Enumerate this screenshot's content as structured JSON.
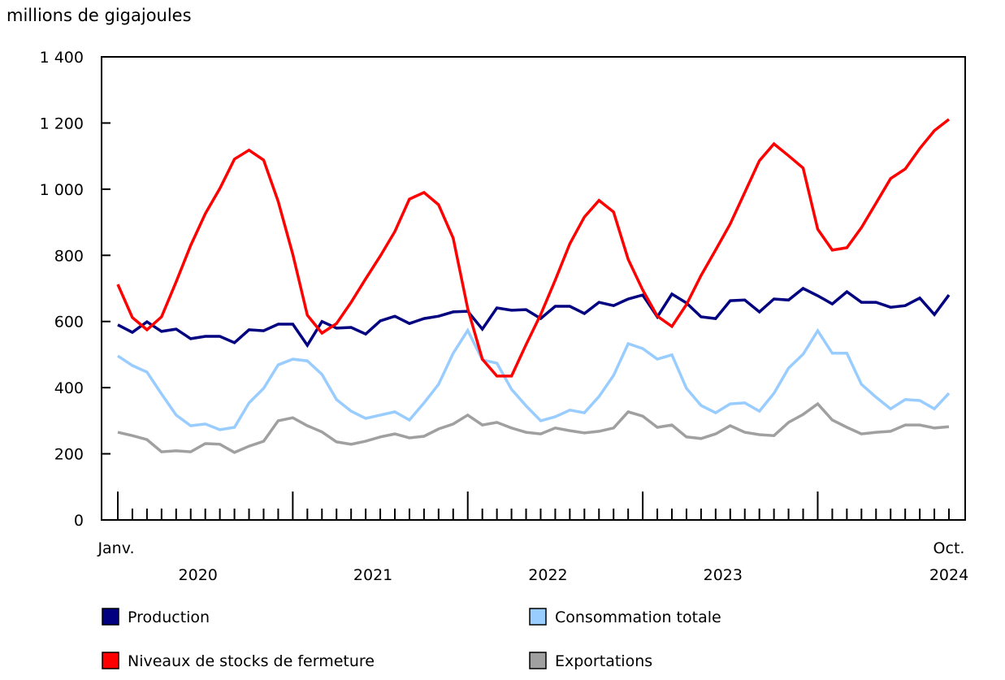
{
  "chart_data": {
    "type": "line",
    "ylabel": "millions de gigajoules",
    "ylim": [
      0,
      1400
    ],
    "yticks": [
      0,
      200,
      400,
      600,
      800,
      1000,
      1200,
      1400
    ],
    "ytick_labels": [
      "0",
      "200",
      "400",
      "600",
      "800",
      "1 000",
      "1 200",
      "1 400"
    ],
    "x_start": "2020-01",
    "x_end": "2024-10",
    "x_month_labels": {
      "first": "Janv.",
      "last": "Oct."
    },
    "x_year_labels": [
      "2020",
      "2021",
      "2022",
      "2023",
      "2024"
    ],
    "grid": false,
    "legend_position": "bottom",
    "series": [
      {
        "name": "Production",
        "color": "#000080",
        "values": [
          590,
          567,
          599,
          570,
          577,
          548,
          555,
          555,
          536,
          575,
          572,
          592,
          592,
          528,
          600,
          580,
          582,
          562,
          602,
          616,
          594,
          609,
          616,
          629,
          631,
          577,
          641,
          634,
          636,
          609,
          646,
          646,
          624,
          658,
          648,
          668,
          680,
          614,
          683,
          656,
          614,
          609,
          663,
          665,
          629,
          668,
          665,
          700,
          678,
          653,
          690,
          658,
          658,
          643,
          648,
          671,
          621,
          680
        ]
      },
      {
        "name": "Consommation totale",
        "color": "#99CCFF",
        "values": [
          496,
          467,
          447,
          381,
          317,
          285,
          290,
          273,
          280,
          354,
          398,
          469,
          486,
          481,
          440,
          364,
          329,
          307,
          317,
          327,
          302,
          354,
          410,
          504,
          573,
          484,
          474,
          395,
          345,
          300,
          312,
          332,
          324,
          373,
          437,
          533,
          518,
          486,
          499,
          398,
          346,
          324,
          351,
          354,
          329,
          383,
          459,
          501,
          572,
          504,
          504,
          410,
          371,
          336,
          364,
          361,
          336,
          383
        ]
      },
      {
        "name": "Niveaux de stocks de fermeture",
        "color": "#FF0000",
        "values": [
          712,
          612,
          575,
          614,
          720,
          830,
          926,
          1002,
          1091,
          1118,
          1088,
          963,
          803,
          619,
          565,
          594,
          658,
          729,
          798,
          872,
          970,
          990,
          953,
          852,
          639,
          486,
          435,
          435,
          530,
          621,
          725,
          835,
          916,
          966,
          931,
          788,
          695,
          616,
          585,
          651,
          739,
          816,
          895,
          990,
          1086,
          1137,
          1101,
          1064,
          879,
          816,
          823,
          884,
          958,
          1032,
          1061,
          1123,
          1177,
          1211
        ]
      },
      {
        "name": "Exportations",
        "color": "#A0A0A0",
        "values": [
          265,
          255,
          243,
          206,
          209,
          206,
          231,
          229,
          204,
          223,
          238,
          300,
          309,
          285,
          266,
          236,
          229,
          238,
          251,
          260,
          248,
          253,
          275,
          290,
          317,
          287,
          295,
          278,
          265,
          260,
          278,
          270,
          263,
          268,
          278,
          327,
          314,
          280,
          287,
          251,
          246,
          260,
          285,
          265,
          258,
          255,
          295,
          319,
          351,
          302,
          280,
          260,
          265,
          268,
          287,
          287,
          278,
          282
        ]
      }
    ]
  }
}
